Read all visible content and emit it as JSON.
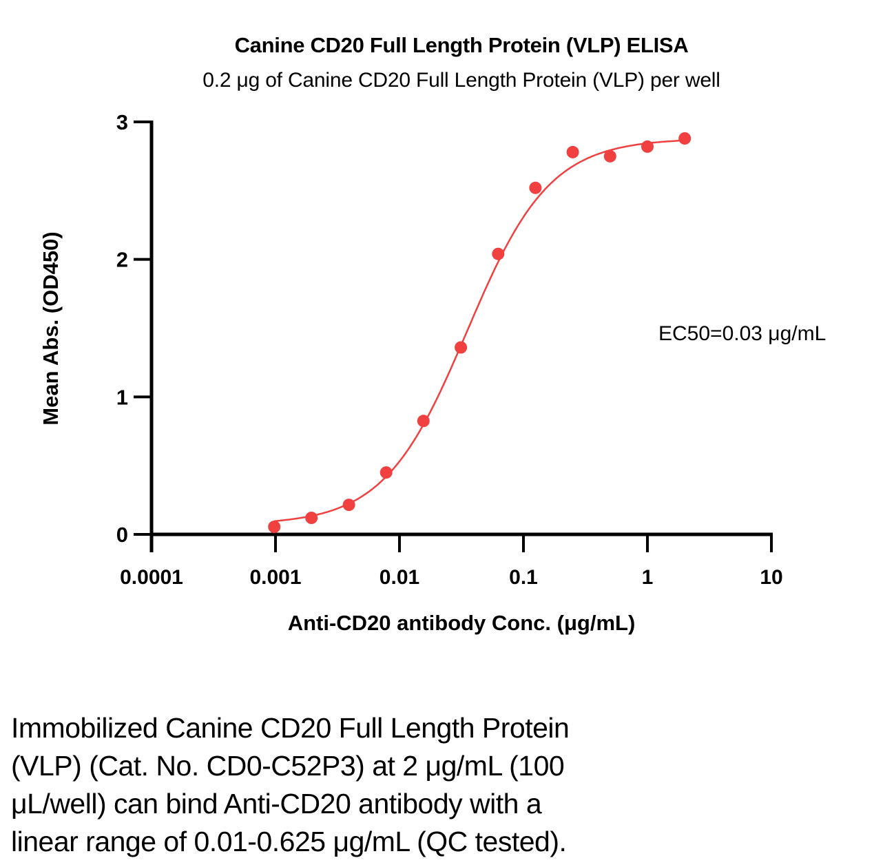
{
  "header": {
    "title": "Canine CD20 Full Length Protein (VLP) ELISA",
    "subtitle": "0.2 μg of Canine CD20 Full Length Protein (VLP) per well"
  },
  "chart_data": {
    "type": "scatter",
    "title": "Canine CD20 Full Length Protein (VLP) ELISA",
    "subtitle": "0.2 μg of Canine CD20 Full Length Protein (VLP) per well",
    "xlabel": "Anti-CD20 antibody Conc. (μg/mL)",
    "ylabel": "Mean Abs. (OD450)",
    "xscale": "log",
    "xlim": [
      0.0001,
      10
    ],
    "ylim": [
      0,
      3
    ],
    "xticks": [
      0.0001,
      0.001,
      0.01,
      0.1,
      1,
      10
    ],
    "xtick_labels": [
      "0.0001",
      "0.001",
      "0.01",
      "0.1",
      "1",
      "10"
    ],
    "yticks": [
      0,
      1,
      2,
      3
    ],
    "ytick_labels": [
      "0",
      "1",
      "2",
      "3"
    ],
    "grid": false,
    "annotation": "EC50=0.03 μg/mL",
    "series": [
      {
        "name": "Anti-CD20 antibody",
        "color": "#f04040",
        "x": [
          0.000977,
          0.00195,
          0.00391,
          0.00781,
          0.0156,
          0.03125,
          0.0625,
          0.125,
          0.25,
          0.5,
          1,
          2
        ],
        "y": [
          0.055,
          0.12,
          0.215,
          0.45,
          0.825,
          1.36,
          2.04,
          2.52,
          2.78,
          2.75,
          2.82,
          2.88
        ]
      }
    ],
    "fit": {
      "model": "4PL",
      "bottom": 0.07,
      "top": 2.88,
      "ec50": 0.035,
      "hill": 1.3
    }
  },
  "caption": {
    "lines": [
      "Immobilized Canine CD20 Full Length Protein",
      "(VLP) (Cat. No. CD0-C52P3) at 2 μg/mL (100",
      "μL/well) can bind Anti-CD20 antibody with a",
      "linear range of 0.01-0.625 μg/mL (QC tested)."
    ]
  }
}
